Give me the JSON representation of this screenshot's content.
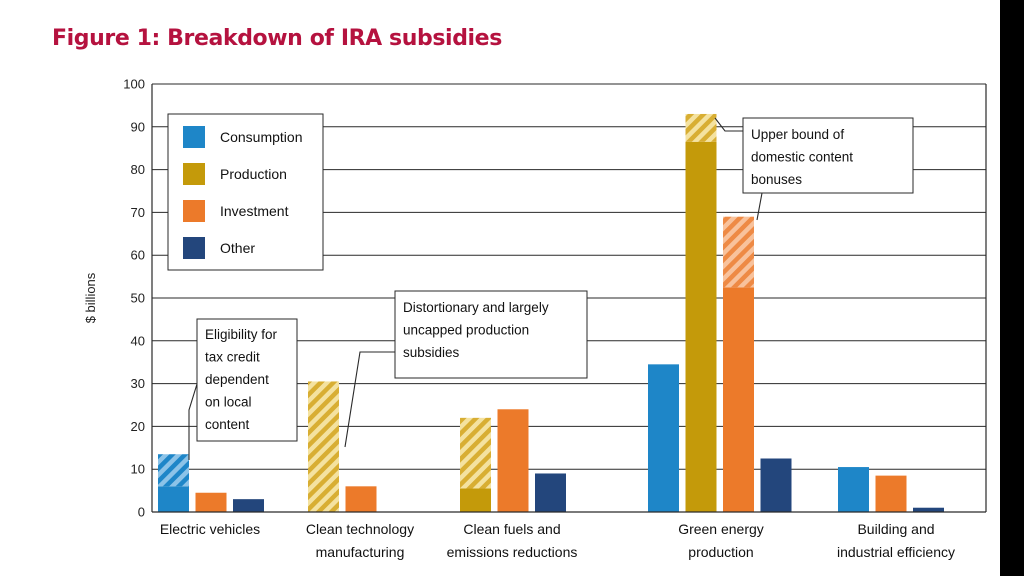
{
  "title": "Figure 1: Breakdown of IRA subsidies",
  "chart_data": {
    "type": "bar",
    "ylabel": "$ billions",
    "xlabel": "",
    "ylim": [
      0,
      100
    ],
    "yticks": [
      0,
      10,
      20,
      30,
      40,
      50,
      60,
      70,
      80,
      90,
      100
    ],
    "grid": true,
    "legend_position": "top-left",
    "categories": [
      [
        "Electric vehicles"
      ],
      [
        "Clean technology",
        "manufacturing"
      ],
      [
        "Clean fuels and",
        "emissions reductions"
      ],
      [
        "Green energy",
        "production"
      ],
      [
        "Building and",
        "industrial efficiency"
      ]
    ],
    "series": [
      {
        "name": "Consumption",
        "color": "#1e86c8",
        "values": [
          6,
          null,
          null,
          34.5,
          10.5
        ],
        "upper_bound": [
          13.5,
          null,
          null,
          null,
          null
        ]
      },
      {
        "name": "Production",
        "color": "#c49a0a",
        "values": [
          null,
          0,
          5.5,
          86.5,
          null
        ],
        "upper_bound": [
          null,
          30.5,
          22,
          93,
          null
        ]
      },
      {
        "name": "Investment",
        "color": "#ec7a2a",
        "values": [
          4.5,
          6,
          24,
          52.5,
          8.5
        ],
        "upper_bound": [
          null,
          null,
          null,
          69,
          null
        ]
      },
      {
        "name": "Other",
        "color": "#23467c",
        "values": [
          3,
          null,
          9,
          12.5,
          1
        ],
        "upper_bound": [
          null,
          null,
          null,
          null,
          null
        ]
      }
    ],
    "annotations": [
      {
        "lines": [
          "Eligibility for",
          "tax credit",
          "dependent",
          "on local",
          "content"
        ]
      },
      {
        "lines": [
          "Distortionary and largely",
          "uncapped production",
          "subsidies"
        ]
      },
      {
        "lines": [
          "Upper bound of",
          "domestic content",
          "bonuses"
        ]
      }
    ]
  }
}
